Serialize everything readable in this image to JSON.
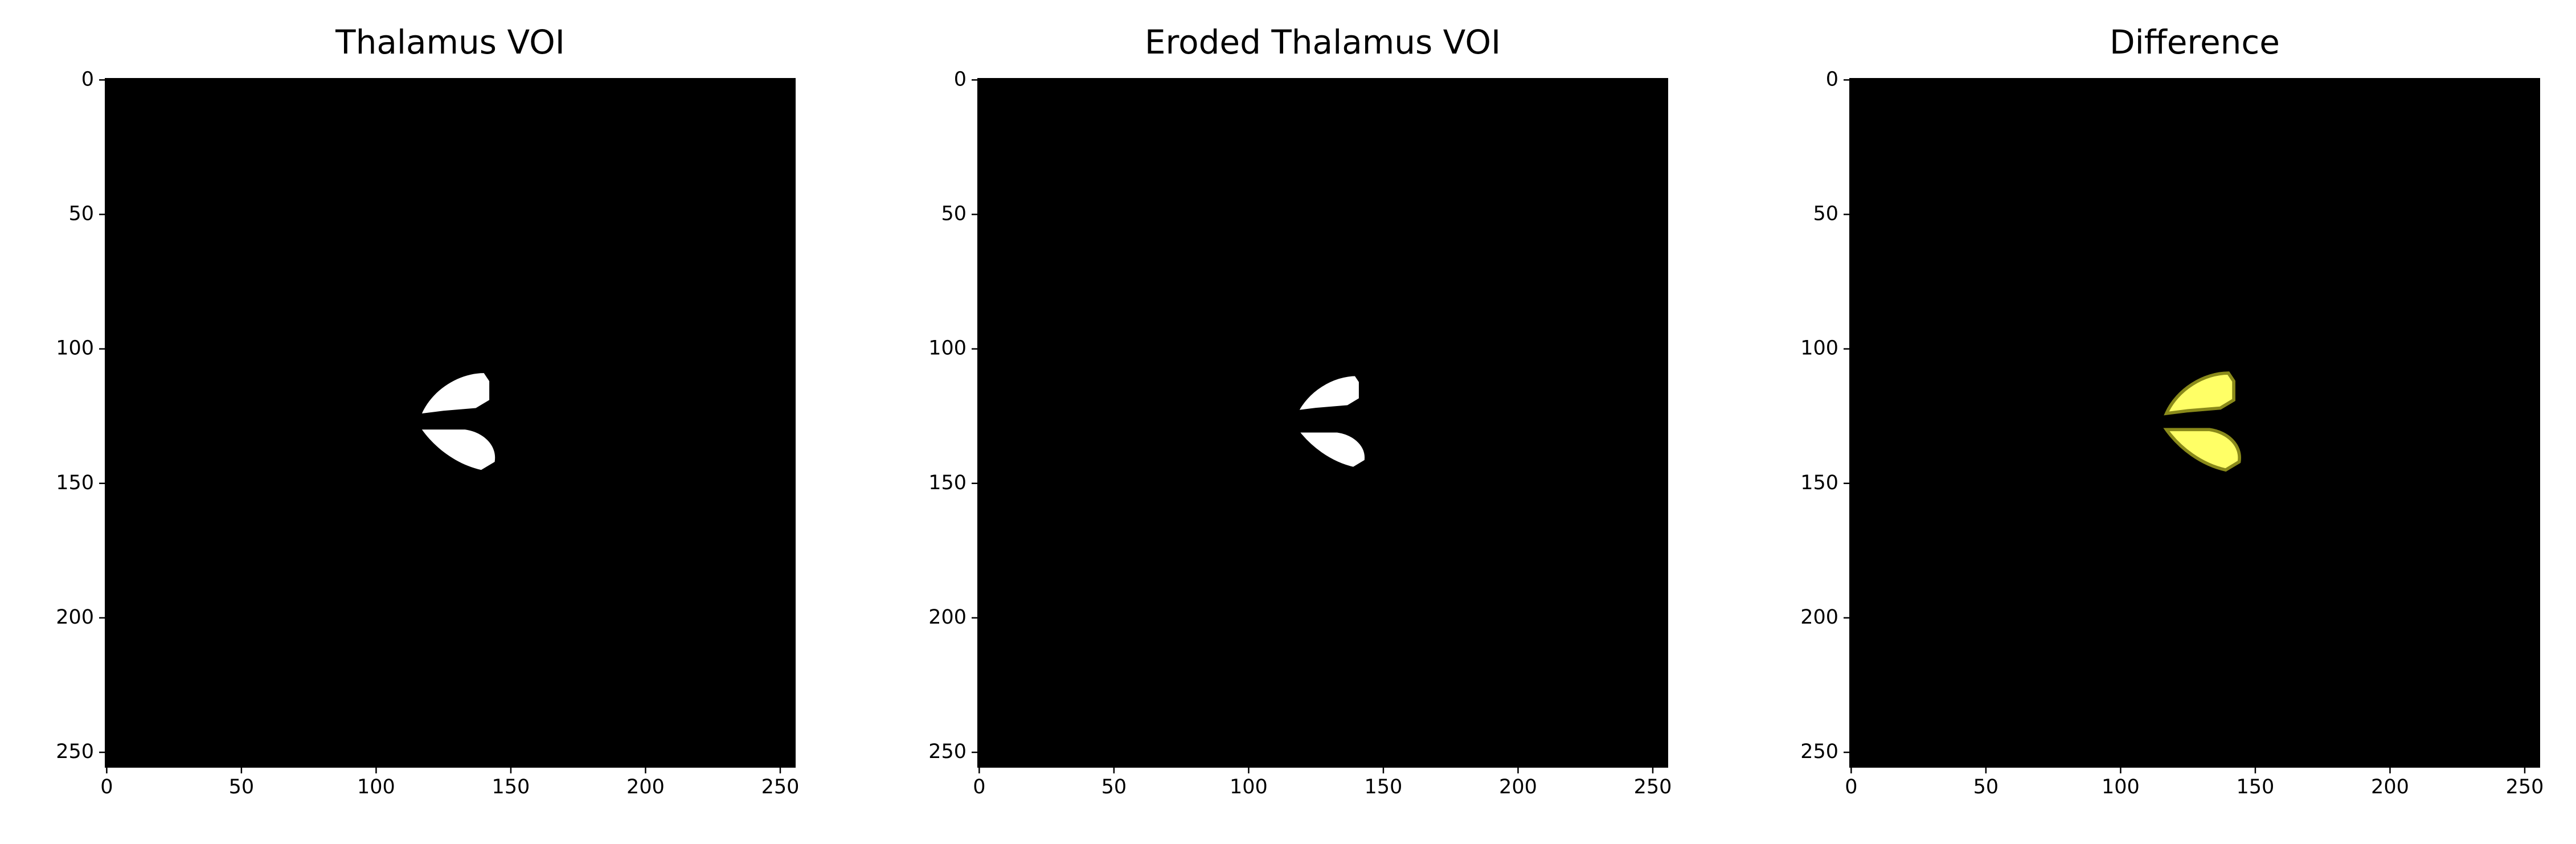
{
  "chart_data": [
    {
      "type": "image",
      "title": "Thalamus VOI",
      "color": "#ffffff",
      "xlim": [
        -0.5,
        255.5
      ],
      "ylim": [
        255.5,
        -0.5
      ],
      "xticks": [
        0,
        50,
        100,
        150,
        200,
        250
      ],
      "yticks": [
        0,
        50,
        100,
        150,
        200,
        250
      ]
    },
    {
      "type": "image",
      "title": "Eroded Thalamus VOI",
      "color": "#ffffff",
      "xlim": [
        -0.5,
        255.5
      ],
      "ylim": [
        255.5,
        -0.5
      ],
      "xticks": [
        0,
        50,
        100,
        150,
        200,
        250
      ],
      "yticks": [
        0,
        50,
        100,
        150,
        200,
        250
      ]
    },
    {
      "type": "image",
      "title": "Difference",
      "color": "#ffff66",
      "xlim": [
        -0.5,
        255.5
      ],
      "ylim": [
        255.5,
        -0.5
      ],
      "xticks": [
        0,
        50,
        100,
        150,
        200,
        250
      ],
      "yticks": [
        0,
        50,
        100,
        150,
        200,
        250
      ]
    }
  ]
}
